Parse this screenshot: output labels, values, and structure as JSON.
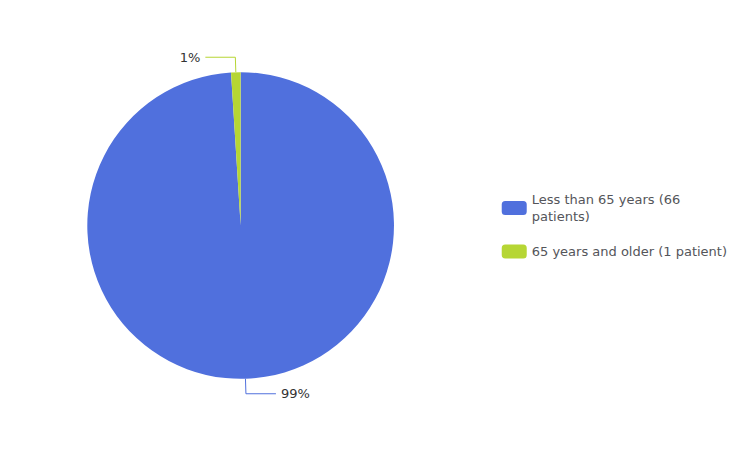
{
  "chart_data": {
    "type": "pie",
    "categories": [
      "Less than 65 years (66\npatients)",
      "65 years and older (1 patient)"
    ],
    "values": [
      99,
      1
    ],
    "value_labels": [
      "99%",
      "1%"
    ],
    "data_labels": true,
    "legend": "right"
  }
}
